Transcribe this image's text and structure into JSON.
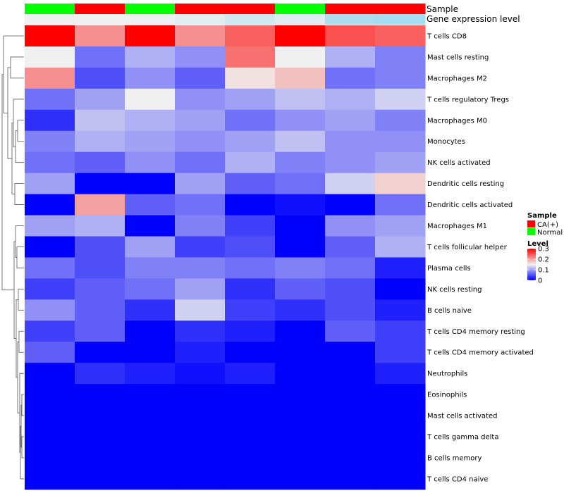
{
  "chart_data": {
    "type": "heatmap",
    "annotation_labels": {
      "sample": "Sample",
      "expression": "Gene expression level"
    },
    "columns": [
      {
        "sample": "Normal",
        "expression_level": 0.01
      },
      {
        "sample": "CA(+)",
        "expression_level": 0.01
      },
      {
        "sample": "Normal",
        "expression_level": 0.02
      },
      {
        "sample": "CA(+)",
        "expression_level": 0.08
      },
      {
        "sample": "CA(+)",
        "expression_level": 0.22
      },
      {
        "sample": "Normal",
        "expression_level": 0.12
      },
      {
        "sample": "CA(+)",
        "expression_level": 0.45
      },
      {
        "sample": "CA(+)",
        "expression_level": 0.5
      }
    ],
    "rows": [
      {
        "label": "T cells CD8",
        "values": [
          0.3,
          0.21,
          0.3,
          0.21,
          0.24,
          0.3,
          0.25,
          0.24
        ]
      },
      {
        "label": "Mast cells resting",
        "values": [
          0.15,
          0.07,
          0.11,
          0.09,
          0.23,
          0.15,
          0.11,
          0.08
        ]
      },
      {
        "label": "Macrophages M2",
        "values": [
          0.21,
          0.05,
          0.09,
          0.06,
          0.16,
          0.18,
          0.07,
          0.08
        ]
      },
      {
        "label": "T cells regulatory  Tregs",
        "values": [
          0.07,
          0.1,
          0.15,
          0.09,
          0.1,
          0.12,
          0.11,
          0.13
        ]
      },
      {
        "label": "Macrophages M0",
        "values": [
          0.03,
          0.12,
          0.11,
          0.1,
          0.07,
          0.09,
          0.1,
          0.08
        ]
      },
      {
        "label": "Monocytes",
        "values": [
          0.08,
          0.11,
          0.1,
          0.09,
          0.1,
          0.12,
          0.09,
          0.09
        ]
      },
      {
        "label": "NK cells activated",
        "values": [
          0.07,
          0.06,
          0.09,
          0.07,
          0.11,
          0.08,
          0.09,
          0.1
        ]
      },
      {
        "label": "Dendritic cells resting",
        "values": [
          0.1,
          0.0,
          0.0,
          0.1,
          0.06,
          0.07,
          0.13,
          0.17
        ]
      },
      {
        "label": "Dendritic cells activated",
        "values": [
          0.0,
          0.2,
          0.06,
          0.07,
          0.0,
          0.01,
          0.0,
          0.07
        ]
      },
      {
        "label": "Macrophages M1",
        "values": [
          0.1,
          0.11,
          0.0,
          0.08,
          0.04,
          0.0,
          0.09,
          0.1
        ]
      },
      {
        "label": "T cells follicular helper",
        "values": [
          0.0,
          0.05,
          0.1,
          0.04,
          0.05,
          0.0,
          0.06,
          0.11
        ]
      },
      {
        "label": "Plasma cells",
        "values": [
          0.07,
          0.05,
          0.08,
          0.08,
          0.07,
          0.08,
          0.07,
          0.02
        ]
      },
      {
        "label": "NK cells resting",
        "values": [
          0.04,
          0.06,
          0.07,
          0.1,
          0.03,
          0.06,
          0.05,
          0.0
        ]
      },
      {
        "label": "B cells naive",
        "values": [
          0.09,
          0.06,
          0.03,
          0.13,
          0.04,
          0.03,
          0.05,
          0.02
        ]
      },
      {
        "label": "T cells CD4 memory resting",
        "values": [
          0.04,
          0.06,
          0.0,
          0.03,
          0.02,
          0.0,
          0.06,
          0.04
        ]
      },
      {
        "label": "T cells CD4 memory activated",
        "values": [
          0.06,
          0.0,
          0.0,
          0.02,
          0.0,
          0.0,
          0.0,
          0.04
        ]
      },
      {
        "label": "Neutrophils",
        "values": [
          0.0,
          0.03,
          0.02,
          0.01,
          0.02,
          0.0,
          0.0,
          0.02
        ]
      },
      {
        "label": "Eosinophils",
        "values": [
          0.0,
          0.0,
          0.0,
          0.0,
          0.0,
          0.0,
          0.0,
          0.0
        ]
      },
      {
        "label": "Mast cells activated",
        "values": [
          0.0,
          0.0,
          0.0,
          0.0,
          0.0,
          0.0,
          0.0,
          0.0
        ]
      },
      {
        "label": "T cells gamma delta",
        "values": [
          0.0,
          0.0,
          0.0,
          0.0,
          0.0,
          0.0,
          0.0,
          0.0
        ]
      },
      {
        "label": "B cells memory",
        "values": [
          0.0,
          0.0,
          0.0,
          0.0,
          0.0,
          0.0,
          0.0,
          0.0
        ]
      },
      {
        "label": "T cells CD4 naive",
        "values": [
          0.0,
          0.0,
          0.0,
          0.0,
          0.0,
          0.0,
          0.0,
          0.0
        ]
      }
    ],
    "color_scale": {
      "min": 0,
      "mid": 0.15,
      "max": 0.3,
      "low": "#0000FF",
      "midcolor": "#F0F0F0",
      "high": "#FF0000"
    },
    "expression_colors": {
      "low": "#F0F0F0",
      "high": "#5BC8F0"
    },
    "legend": {
      "sample_title": "Sample",
      "sample_entries": [
        {
          "label": "CA(+)",
          "color": "#FF0000"
        },
        {
          "label": "Normal",
          "color": "#00FF00"
        }
      ],
      "level_title": "Level",
      "level_ticks": [
        {
          "value": 0.3,
          "label": "0.3"
        },
        {
          "value": 0.2,
          "label": "0.2"
        },
        {
          "value": 0.1,
          "label": "0.1"
        },
        {
          "value": 0,
          "label": "0"
        }
      ],
      "position": "right"
    }
  }
}
